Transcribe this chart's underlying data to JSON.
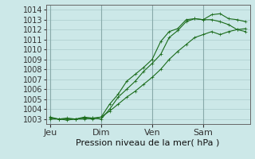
{
  "title": "Pression niveau de la mer( hPa )",
  "bg_color": "#cce8e8",
  "grid_color": "#aacccc",
  "line_color": "#1a6b1a",
  "ylim": [
    1002.5,
    1014.5
  ],
  "yticks": [
    1003,
    1004,
    1005,
    1006,
    1007,
    1008,
    1009,
    1010,
    1011,
    1012,
    1013,
    1014
  ],
  "xtick_labels": [
    "Jeu",
    "Dim",
    "Ven",
    "Sam"
  ],
  "xtick_positions": [
    0,
    6,
    12,
    18
  ],
  "vlines": [
    0,
    6,
    12,
    18
  ],
  "total_points": 24,
  "series1": [
    1003.2,
    1003.0,
    1003.1,
    1003.0,
    1003.2,
    1003.1,
    1003.0,
    1004.0,
    1005.2,
    1006.0,
    1006.8,
    1007.8,
    1008.6,
    1009.5,
    1011.2,
    1011.9,
    1012.8,
    1013.1,
    1013.0,
    1013.5,
    1013.6,
    1013.1,
    1013.0,
    1012.8
  ],
  "series2": [
    1003.1,
    1003.0,
    1003.0,
    1003.0,
    1003.1,
    1003.0,
    1003.2,
    1004.5,
    1005.5,
    1006.8,
    1007.5,
    1008.2,
    1009.0,
    1010.8,
    1011.8,
    1012.1,
    1013.0,
    1013.1,
    1013.0,
    1013.0,
    1012.8,
    1012.5,
    1012.0,
    1011.8
  ],
  "series3": [
    1003.0,
    1003.0,
    1002.9,
    1003.0,
    1003.0,
    1003.1,
    1003.2,
    1003.8,
    1004.5,
    1005.2,
    1005.8,
    1006.5,
    1007.2,
    1008.0,
    1009.0,
    1009.8,
    1010.5,
    1011.2,
    1011.5,
    1011.8,
    1011.5,
    1011.8,
    1012.0,
    1012.1
  ],
  "xlabel_fontsize": 8,
  "ylabel_fontsize": 7,
  "title_fontsize": 8,
  "marker_size": 2.5,
  "line_width": 0.8
}
